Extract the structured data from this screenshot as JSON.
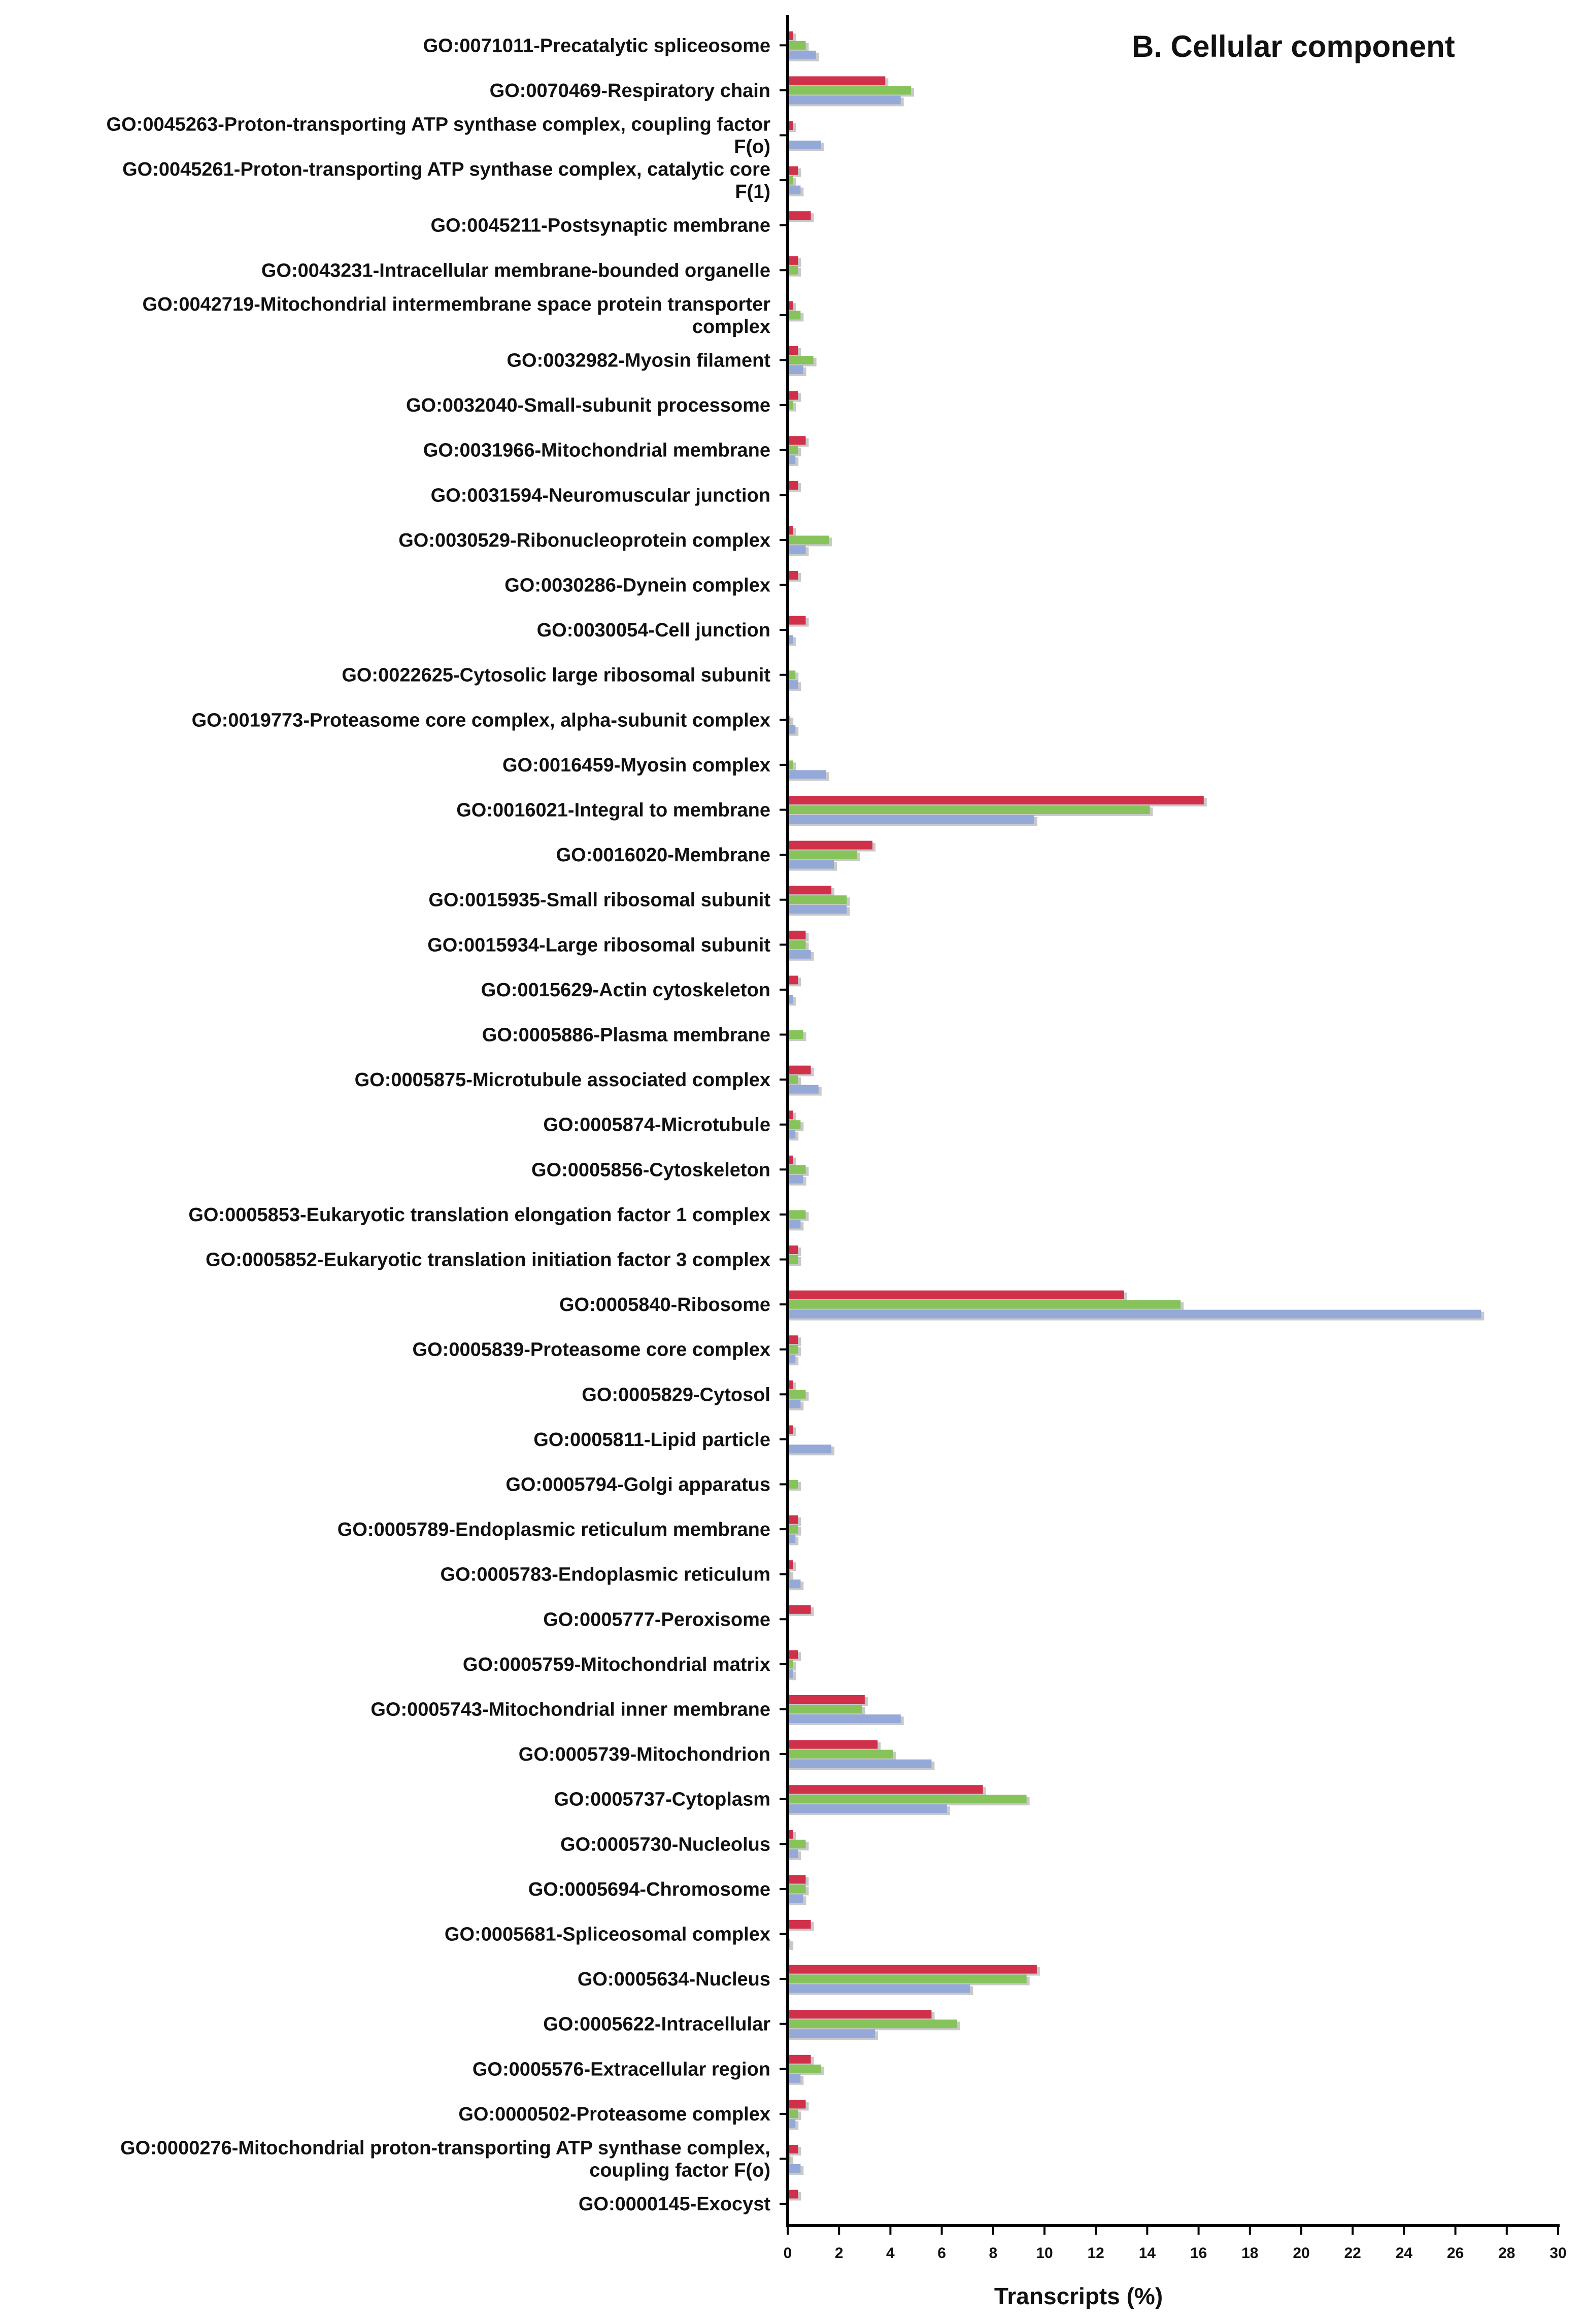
{
  "chart_data": {
    "type": "bar",
    "orientation": "horizontal",
    "title": "B. Cellular component",
    "xlabel": "Transcripts (%)",
    "ylabel": "",
    "xlim": [
      0,
      30
    ],
    "xticks": [
      0,
      2,
      4,
      6,
      8,
      10,
      12,
      14,
      16,
      18,
      20,
      22,
      24,
      26,
      28,
      30
    ],
    "grid": false,
    "legend": "none",
    "series_colors": [
      "#d0304a",
      "#86c35a",
      "#95a9d8"
    ],
    "categories": [
      [
        "GO:0071011-Precatalytic spliceosome"
      ],
      [
        "GO:0070469-Respiratory chain"
      ],
      [
        "GO:0045263-Proton-transporting ATP synthase complex, coupling factor",
        "F(o)"
      ],
      [
        "GO:0045261-Proton-transporting ATP synthase complex, catalytic core",
        "F(1)"
      ],
      [
        "GO:0045211-Postsynaptic membrane"
      ],
      [
        "GO:0043231-Intracellular membrane-bounded organelle"
      ],
      [
        "GO:0042719-Mitochondrial intermembrane space protein transporter",
        "complex"
      ],
      [
        "GO:0032982-Myosin filament"
      ],
      [
        "GO:0032040-Small-subunit processome"
      ],
      [
        "GO:0031966-Mitochondrial membrane"
      ],
      [
        "GO:0031594-Neuromuscular junction"
      ],
      [
        "GO:0030529-Ribonucleoprotein complex"
      ],
      [
        "GO:0030286-Dynein complex"
      ],
      [
        "GO:0030054-Cell junction"
      ],
      [
        "GO:0022625-Cytosolic large ribosomal subunit"
      ],
      [
        "GO:0019773-Proteasome core complex, alpha-subunit complex"
      ],
      [
        "GO:0016459-Myosin complex"
      ],
      [
        "GO:0016021-Integral to membrane"
      ],
      [
        "GO:0016020-Membrane"
      ],
      [
        "GO:0015935-Small ribosomal subunit"
      ],
      [
        "GO:0015934-Large ribosomal subunit"
      ],
      [
        "GO:0015629-Actin cytoskeleton"
      ],
      [
        "GO:0005886-Plasma membrane"
      ],
      [
        "GO:0005875-Microtubule associated complex"
      ],
      [
        "GO:0005874-Microtubule"
      ],
      [
        "GO:0005856-Cytoskeleton"
      ],
      [
        "GO:0005853-Eukaryotic translation elongation factor 1 complex"
      ],
      [
        "GO:0005852-Eukaryotic translation initiation factor 3 complex"
      ],
      [
        "GO:0005840-Ribosome"
      ],
      [
        "GO:0005839-Proteasome core complex"
      ],
      [
        "GO:0005829-Cytosol"
      ],
      [
        "GO:0005811-Lipid particle"
      ],
      [
        "GO:0005794-Golgi apparatus"
      ],
      [
        "GO:0005789-Endoplasmic reticulum membrane"
      ],
      [
        "GO:0005783-Endoplasmic reticulum"
      ],
      [
        "GO:0005777-Peroxisome"
      ],
      [
        "GO:0005759-Mitochondrial matrix"
      ],
      [
        "GO:0005743-Mitochondrial inner membrane"
      ],
      [
        "GO:0005739-Mitochondrion"
      ],
      [
        "GO:0005737-Cytoplasm"
      ],
      [
        "GO:0005730-Nucleolus"
      ],
      [
        "GO:0005694-Chromosome"
      ],
      [
        "GO:0005681-Spliceosomal complex"
      ],
      [
        "GO:0005634-Nucleus"
      ],
      [
        "GO:0005622-Intracellular"
      ],
      [
        "GO:0005576-Extracellular region"
      ],
      [
        "GO:0000502-Proteasome complex"
      ],
      [
        "GO:0000276-Mitochondrial proton-transporting ATP synthase complex,",
        "coupling factor F(o)"
      ],
      [
        "GO:0000145-Exocyst"
      ]
    ],
    "series": [
      {
        "values": [
          0.3,
          3.9,
          0.3,
          0.5,
          1.0,
          0.5,
          0.3,
          0.5,
          0.5,
          0.8,
          0.5,
          0.3,
          0.5,
          0.8,
          0,
          0,
          0,
          16.3,
          3.4,
          1.8,
          0.8,
          0.5,
          0,
          1.0,
          0.3,
          0.3,
          0,
          0.5,
          13.2,
          0.5,
          0.3,
          0.3,
          0,
          0.5,
          0.3,
          1.0,
          0.5,
          3.1,
          3.6,
          7.7,
          0.3,
          0.8,
          1.0,
          9.8,
          5.7,
          1.0,
          0.8,
          0.5,
          0.5
        ]
      },
      {
        "values": [
          0.8,
          4.9,
          0,
          0.3,
          0,
          0.5,
          0.6,
          1.1,
          0.3,
          0.5,
          0,
          1.7,
          0,
          0,
          0.4,
          0.2,
          0.3,
          14.2,
          2.8,
          2.4,
          0.8,
          0,
          0.7,
          0.5,
          0.6,
          0.8,
          0.8,
          0.5,
          15.4,
          0.5,
          0.8,
          0,
          0.5,
          0.5,
          0.2,
          0,
          0.3,
          3.0,
          4.2,
          9.4,
          0.8,
          0.8,
          0,
          9.4,
          6.7,
          1.4,
          0.5,
          0.2,
          0
        ]
      },
      {
        "values": [
          1.2,
          4.5,
          1.4,
          0.6,
          0,
          0,
          0,
          0.7,
          0,
          0.4,
          0,
          0.8,
          0,
          0.3,
          0.5,
          0.4,
          1.6,
          9.7,
          1.9,
          2.4,
          1.0,
          0.3,
          0,
          1.3,
          0.4,
          0.7,
          0.6,
          0,
          27.1,
          0.4,
          0.6,
          1.8,
          0,
          0.4,
          0.6,
          0,
          0.3,
          4.5,
          5.7,
          6.3,
          0.5,
          0.7,
          0.2,
          7.2,
          3.5,
          0.6,
          0.4,
          0.6,
          0
        ]
      }
    ]
  }
}
